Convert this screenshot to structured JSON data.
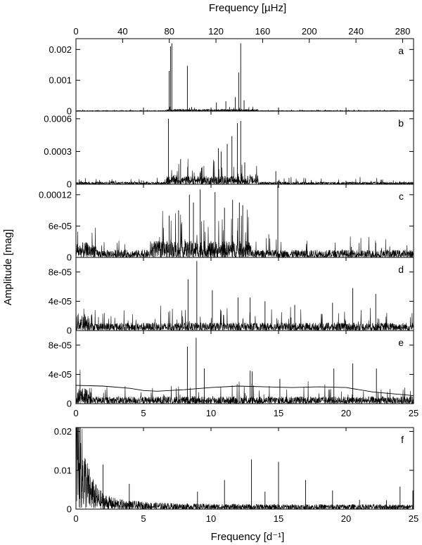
{
  "figure": {
    "top_axis_label": "Frequency [µHz]",
    "bottom_axis_label": "Frequency [d⁻¹]",
    "y_axis_label": "Amplitude [mag]",
    "top_ticks": [
      "0",
      "40",
      "80",
      "120",
      "160",
      "200",
      "240",
      "280"
    ],
    "bottom_ticks": [
      "0",
      "5",
      "10",
      "15",
      "20",
      "25"
    ]
  },
  "chart_data": [
    {
      "type": "line",
      "panel": "a",
      "xlim": [
        0,
        25
      ],
      "ylim": [
        0,
        0.00235
      ],
      "yticks": [
        "0",
        "0.001",
        "0.002"
      ],
      "ytick_values": [
        0,
        0.001,
        0.002
      ],
      "noise_level": 1e-05,
      "series": [
        {
          "peaks": [
            [
              6.9,
              0.0013
            ],
            [
              7.0,
              0.0021
            ],
            [
              7.1,
              0.0022
            ],
            [
              8.25,
              0.00147
            ],
            [
              10.4,
              0.00028
            ],
            [
              11.1,
              0.00032
            ],
            [
              11.8,
              0.00045
            ],
            [
              12.05,
              0.00125
            ],
            [
              12.2,
              0.0022
            ],
            [
              12.45,
              0.00035
            ]
          ]
        }
      ]
    },
    {
      "type": "line",
      "panel": "b",
      "xlim": [
        0,
        25
      ],
      "ylim": [
        0,
        0.00067
      ],
      "yticks": [
        "0",
        "0.0003",
        "0.0006"
      ],
      "ytick_values": [
        0,
        0.0003,
        0.0006
      ],
      "noise_level": 1.2e-05,
      "series": [
        {
          "peaks": [
            [
              6.85,
              0.0006
            ],
            [
              7.75,
              0.00023
            ],
            [
              9.3,
              0.00015
            ],
            [
              10.55,
              0.00033
            ],
            [
              10.75,
              0.0003
            ],
            [
              11.2,
              0.00037
            ],
            [
              11.55,
              0.00044
            ],
            [
              11.95,
              0.00056
            ],
            [
              12.2,
              0.00058
            ],
            [
              12.5,
              0.0002
            ],
            [
              14.8,
              0.00012
            ]
          ]
        }
      ]
    },
    {
      "type": "line",
      "panel": "c",
      "xlim": [
        0,
        25
      ],
      "ylim": [
        0,
        0.00014
      ],
      "yticks": [
        "0",
        "6e-05",
        "0.00012"
      ],
      "ytick_values": [
        0,
        6e-05,
        0.00012
      ],
      "noise_level": 8e-06,
      "series": [
        {
          "peaks": [
            [
              6.9,
              8e-05
            ],
            [
              7.6,
              9e-05
            ],
            [
              8.4,
              0.00012
            ],
            [
              8.7,
              0.000105
            ],
            [
              9.2,
              0.00013
            ],
            [
              10.3,
              0.000125
            ],
            [
              11.0,
              9.5e-05
            ],
            [
              11.6,
              0.00011
            ],
            [
              12.1,
              0.000105
            ],
            [
              12.35,
              0.0001
            ],
            [
              14.95,
              0.000138
            ],
            [
              20.4,
              2e-05
            ],
            [
              22.2,
              2.8e-05
            ]
          ]
        }
      ]
    },
    {
      "type": "line",
      "panel": "d",
      "xlim": [
        0,
        25
      ],
      "ylim": [
        0,
        0.0001
      ],
      "yticks": [
        "0",
        "4e-05",
        "8e-05"
      ],
      "ytick_values": [
        0,
        4e-05,
        8e-05
      ],
      "noise_level": 6e-06,
      "series": [
        {
          "peaks": [
            [
              8.3,
              7e-05
            ],
            [
              8.95,
              9.5e-05
            ],
            [
              10.1,
              5.5e-05
            ],
            [
              12.0,
              4.5e-05
            ],
            [
              12.9,
              4.5e-05
            ],
            [
              14.0,
              4e-05
            ],
            [
              16.2,
              3.5e-05
            ],
            [
              19.0,
              3.8e-05
            ],
            [
              20.5,
              5.8e-05
            ],
            [
              22.2,
              5e-05
            ]
          ]
        }
      ]
    },
    {
      "type": "line",
      "panel": "e",
      "xlim": [
        0,
        25
      ],
      "ylim": [
        0,
        0.0001
      ],
      "yticks": [
        "0",
        "4e-05",
        "8e-05"
      ],
      "ytick_values": [
        0,
        4e-05,
        8e-05
      ],
      "noise_level": 5.5e-06,
      "series": [
        {
          "peaks": [
            [
              8.25,
              7.8e-05
            ],
            [
              8.9,
              9e-05
            ],
            [
              9.5,
              4.8e-05
            ],
            [
              12.9,
              4.5e-05
            ],
            [
              13.05,
              4.4e-05
            ],
            [
              15.1,
              3.4e-05
            ],
            [
              19.1,
              4.8e-05
            ],
            [
              20.5,
              5.5e-05
            ],
            [
              22.25,
              4.8e-05
            ]
          ]
        },
        {
          "curve": [
            [
              0,
              2.5e-05
            ],
            [
              2,
              2.4e-05
            ],
            [
              4,
              2.1e-05
            ],
            [
              5,
              1.8e-05
            ],
            [
              6,
              1.7e-05
            ],
            [
              8,
              1.9e-05
            ],
            [
              10,
              2.2e-05
            ],
            [
              12,
              2.4e-05
            ],
            [
              14,
              2.3e-05
            ],
            [
              16,
              2.2e-05
            ],
            [
              18,
              2.3e-05
            ],
            [
              20,
              2.2e-05
            ],
            [
              22,
              1.6e-05
            ],
            [
              25,
              1.1e-05
            ]
          ]
        }
      ]
    },
    {
      "type": "line",
      "panel": "f",
      "xlim": [
        0,
        25
      ],
      "ylim": [
        0,
        0.021
      ],
      "yticks": [
        "0",
        "0.01",
        "0.02"
      ],
      "ytick_values": [
        0,
        0.01,
        0.02
      ],
      "noise_level": 0.0007,
      "series": [
        {
          "peaks": [
            [
              2.0,
              0.0115
            ],
            [
              3.95,
              0.0065
            ],
            [
              9.0,
              0.0045
            ],
            [
              11.0,
              0.0075
            ],
            [
              13.0,
              0.0128
            ],
            [
              14.0,
              0.0045
            ],
            [
              15.0,
              0.0122
            ],
            [
              17.0,
              0.0075
            ],
            [
              19.0,
              0.0048
            ],
            [
              21.0,
              0.0024
            ],
            [
              23.0,
              0.0023
            ],
            [
              24.0,
              0.0058
            ],
            [
              24.95,
              0.0048
            ]
          ]
        }
      ]
    }
  ]
}
